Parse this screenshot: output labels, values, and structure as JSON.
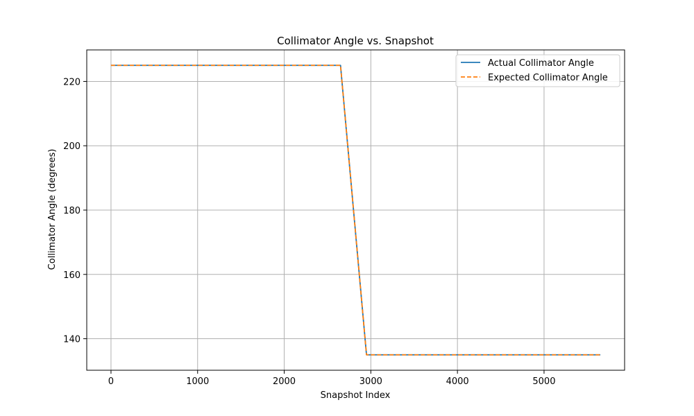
{
  "chart_data": {
    "type": "line",
    "title": "Collimator Angle vs. Snapshot",
    "xlabel": "Snapshot Index",
    "ylabel": "Collimator Angle (degrees)",
    "xlim": [
      -280,
      5930
    ],
    "ylim": [
      130.2,
      229.8
    ],
    "xticks": [
      0,
      1000,
      2000,
      3000,
      4000,
      5000
    ],
    "yticks": [
      140,
      160,
      180,
      200,
      220
    ],
    "grid": true,
    "legend_position": "top-right",
    "series": [
      {
        "name": "Actual Collimator Angle",
        "color": "#1f77b4",
        "style": "solid",
        "points": [
          [
            0,
            225
          ],
          [
            2650,
            225
          ],
          [
            2950,
            135
          ],
          [
            5650,
            135
          ]
        ]
      },
      {
        "name": "Expected Collimator Angle",
        "color": "#ff7f0e",
        "style": "dashed",
        "points": [
          [
            0,
            225
          ],
          [
            2650,
            225
          ],
          [
            2950,
            135
          ],
          [
            5650,
            135
          ]
        ]
      }
    ]
  }
}
